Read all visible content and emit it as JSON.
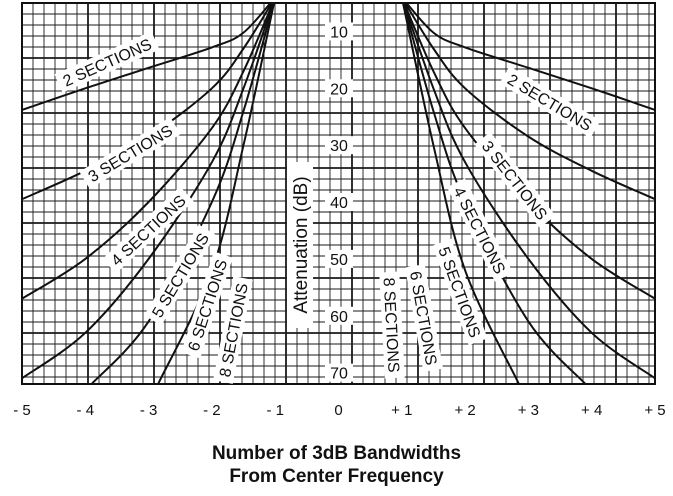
{
  "chart_data": {
    "type": "line",
    "xlabel_lines": [
      "Number of 3dB Bandwidths",
      "From Center Frequency"
    ],
    "ylabel": "Attenuation (dB)",
    "xlim": [
      -5,
      5
    ],
    "ylim": [
      5,
      72
    ],
    "grid": true,
    "x_ticks": [
      "- 5",
      "- 4",
      "- 3",
      "- 2",
      "- 1",
      "0",
      "+ 1",
      "+ 2",
      "+ 3",
      "+ 4",
      "+ 5"
    ],
    "y_ticks": [
      "10",
      "20",
      "30",
      "40",
      "50",
      "60",
      "70"
    ],
    "series": [
      {
        "name": "2 SECTIONS",
        "left_label": "2 SECTIONS",
        "right_label": "2 SECTIONS",
        "points": [
          [
            -5.0,
            23.8
          ],
          [
            -4.0,
            20.0
          ],
          [
            -3.0,
            16.4
          ],
          [
            -2.0,
            12.8
          ],
          [
            -1.5,
            10.2
          ],
          [
            -1.0,
            4.0
          ],
          [
            1.0,
            4.0
          ],
          [
            1.5,
            10.2
          ],
          [
            2.0,
            12.8
          ],
          [
            3.0,
            16.4
          ],
          [
            4.0,
            20.0
          ],
          [
            5.0,
            23.8
          ]
        ]
      },
      {
        "name": "3 SECTIONS",
        "left_label": "3 SECTIONS",
        "right_label": "3 SECTIONS",
        "points": [
          [
            -5.0,
            39.5
          ],
          [
            -4.0,
            34.5
          ],
          [
            -3.0,
            28.5
          ],
          [
            -2.0,
            20.0
          ],
          [
            -1.5,
            13.0
          ],
          [
            -1.0,
            4.0
          ],
          [
            1.0,
            4.0
          ],
          [
            1.5,
            13.0
          ],
          [
            2.0,
            20.0
          ],
          [
            3.0,
            28.5
          ],
          [
            4.0,
            34.5
          ],
          [
            5.0,
            39.5
          ]
        ]
      },
      {
        "name": "4 SECTIONS",
        "left_label": "4 SECTIONS",
        "right_label": "4 SECTIONS",
        "points": [
          [
            -5.0,
            57.0
          ],
          [
            -4.0,
            50.0
          ],
          [
            -3.0,
            40.0
          ],
          [
            -2.0,
            27.0
          ],
          [
            -1.5,
            17.0
          ],
          [
            -1.0,
            4.0
          ],
          [
            1.0,
            4.0
          ],
          [
            1.5,
            17.0
          ],
          [
            2.0,
            27.0
          ],
          [
            3.0,
            40.0
          ],
          [
            4.0,
            50.0
          ],
          [
            5.0,
            57.0
          ]
        ]
      },
      {
        "name": "5 SECTIONS",
        "left_label": "5 SECTIONS",
        "right_label": "5 SECTIONS",
        "points": [
          [
            -5.0,
            71.0
          ],
          [
            -4.0,
            63.0
          ],
          [
            -3.0,
            50.0
          ],
          [
            -2.0,
            33.0
          ],
          [
            -1.5,
            20.0
          ],
          [
            -1.0,
            4.0
          ],
          [
            1.0,
            4.0
          ],
          [
            1.5,
            20.0
          ],
          [
            2.0,
            33.0
          ],
          [
            3.0,
            50.0
          ],
          [
            4.0,
            63.0
          ],
          [
            5.0,
            71.0
          ]
        ]
      },
      {
        "name": "6 SECTIONS",
        "left_label": "6 SECTIONS",
        "right_label": "6 SECTIONS",
        "points": [
          [
            -3.9,
            72.0
          ],
          [
            -3.0,
            61.0
          ],
          [
            -2.0,
            40.0
          ],
          [
            -1.5,
            24.0
          ],
          [
            -1.0,
            4.0
          ],
          [
            1.0,
            4.0
          ],
          [
            1.5,
            24.0
          ],
          [
            2.0,
            40.0
          ],
          [
            3.0,
            61.0
          ],
          [
            3.9,
            72.0
          ]
        ]
      },
      {
        "name": "8 SECTIONS",
        "left_label": "8 SECTIONS",
        "right_label": "8 SECTIONS",
        "points": [
          [
            -2.85,
            72.0
          ],
          [
            -2.0,
            52.0
          ],
          [
            -1.5,
            30.0
          ],
          [
            -1.0,
            4.0
          ],
          [
            1.0,
            4.0
          ],
          [
            1.5,
            30.0
          ],
          [
            2.0,
            52.0
          ],
          [
            2.85,
            72.0
          ]
        ]
      }
    ]
  }
}
